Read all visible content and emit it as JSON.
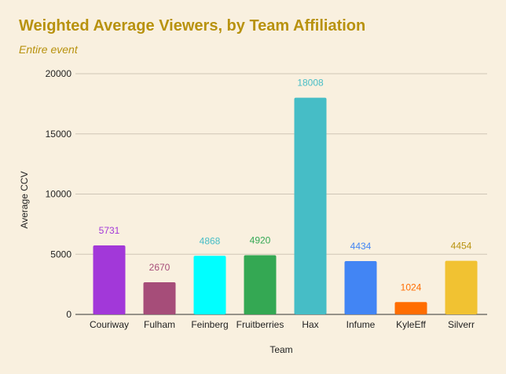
{
  "chart_data": {
    "type": "bar",
    "title": "Weighted Average Viewers, by Team Affiliation",
    "subtitle": "Entire event",
    "xlabel": "Team",
    "ylabel": "Average CCV",
    "ylim": [
      0,
      20000
    ],
    "yticks": [
      "0",
      "5000",
      "10000",
      "15000",
      "20000"
    ],
    "ytick_values": [
      0,
      5000,
      10000,
      15000,
      20000
    ],
    "grid": true,
    "categories": [
      "Couriway",
      "Fulham",
      "Feinberg",
      "Fruitberries",
      "Hax",
      "Infume",
      "KyleEff",
      "Silverr"
    ],
    "values": [
      5731,
      2670,
      4868,
      4920,
      18008,
      4434,
      1024,
      4454
    ],
    "data_labels": [
      "5731",
      "2670",
      "4868",
      "4920",
      "18008",
      "4434",
      "1024",
      "4454"
    ],
    "colors": [
      "#a238d9",
      "#a64d79",
      "#00ffff",
      "#34a853",
      "#46bdc6",
      "#4285f4",
      "#ff6d01",
      "#f1c232"
    ],
    "label_colors": [
      "#a238d9",
      "#a64d79",
      "#46bdc6",
      "#34a853",
      "#46bdc6",
      "#4285f4",
      "#ff6d01",
      "#b8920e"
    ]
  }
}
